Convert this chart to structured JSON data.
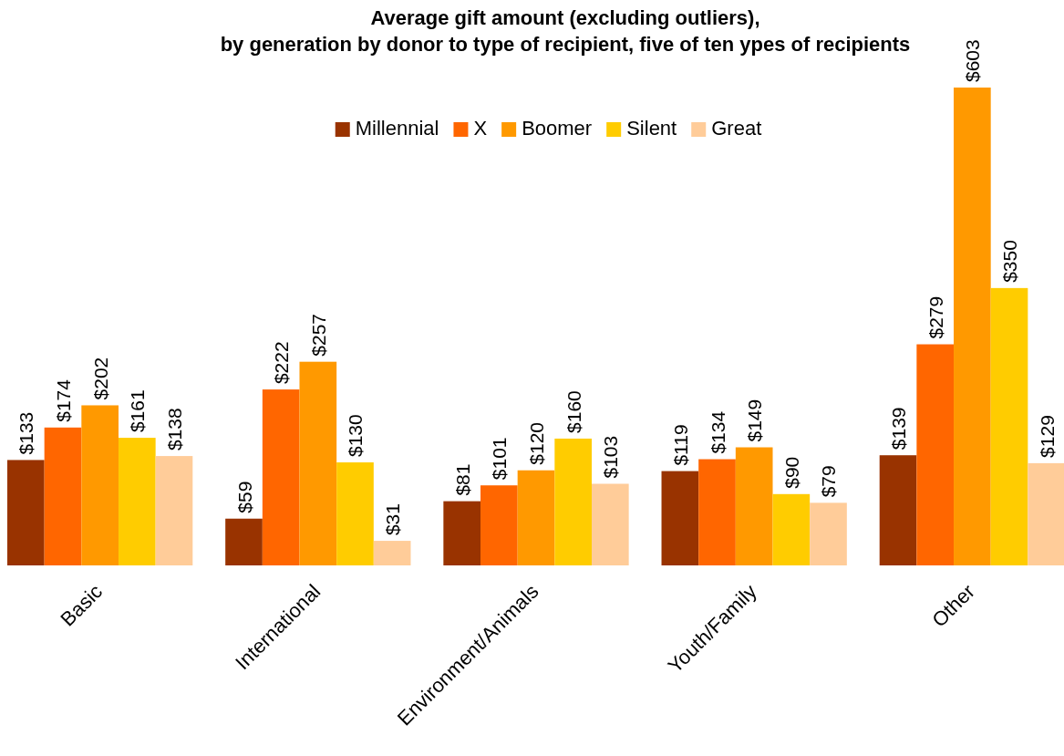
{
  "chart_data": {
    "type": "bar",
    "title": "Average gift amount (excluding outliers),\nby generation by donor to type of recipient, five of ten ypes of recipients",
    "categories": [
      "Basic",
      "International",
      "Environment/Animals",
      "Youth/Family",
      "Other"
    ],
    "series": [
      {
        "name": "Millennial",
        "color": "#993300",
        "values": [
          133,
          59,
          81,
          119,
          139
        ],
        "value_labels": [
          "$133",
          "$59",
          "$81",
          "$119",
          "$139"
        ]
      },
      {
        "name": "X",
        "color": "#ff6600",
        "values": [
          174,
          222,
          101,
          134,
          279
        ],
        "value_labels": [
          "$174",
          "$222",
          "$101",
          "$134",
          "$279"
        ]
      },
      {
        "name": "Boomer",
        "color": "#ff9900",
        "values": [
          202,
          257,
          120,
          149,
          603
        ],
        "value_labels": [
          "$202",
          "$257",
          "$120",
          "$149",
          "$603"
        ]
      },
      {
        "name": "Silent",
        "color": "#ffcc00",
        "values": [
          161,
          130,
          160,
          90,
          350
        ],
        "value_labels": [
          "$161",
          "$130",
          "$160",
          "$90",
          "$350"
        ]
      },
      {
        "name": "Great",
        "color": "#ffcc99",
        "values": [
          138,
          31,
          103,
          79,
          129
        ],
        "value_labels": [
          "$138",
          "$31",
          "$103",
          "$79",
          "$129"
        ]
      }
    ],
    "legend": "top",
    "grid": false
  }
}
